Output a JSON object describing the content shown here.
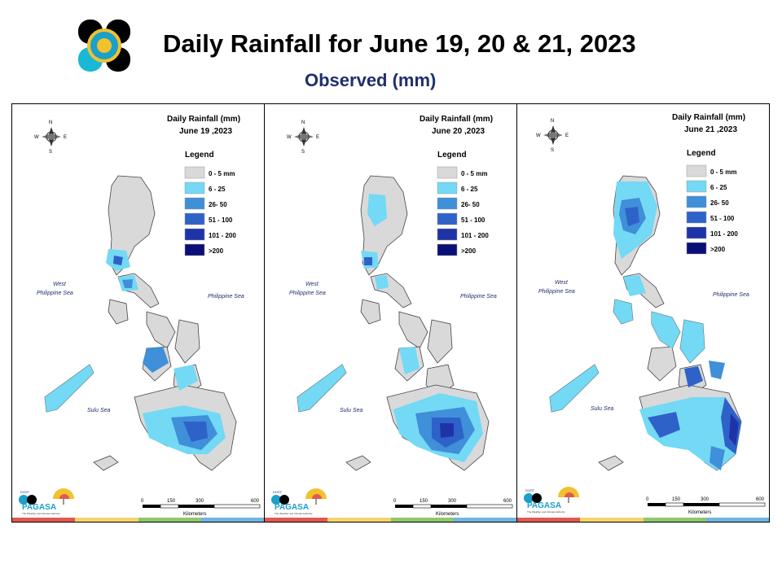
{
  "header": {
    "title": "Daily Rainfall for June 19, 20 & 21, 2023",
    "subtitle": "Observed (mm)"
  },
  "colors": {
    "c0": "#d9d9d9",
    "c1": "#73d9f5",
    "c2": "#3f8fd9",
    "c3": "#2f62c9",
    "c4": "#1f33a8",
    "c5": "#0a0f78",
    "strip": [
      "#e05a4f",
      "#f3d46b",
      "#8fc76e",
      "#6fb5e0"
    ]
  },
  "panels": [
    {
      "map_title_1": "Daily Rainfall (mm)",
      "map_title_2": "June 19 ,2023",
      "legend_title": "Legend",
      "legend": [
        "0 - 5 mm",
        "6 - 25",
        "26- 50",
        "51 - 100",
        "101 - 200",
        ">200"
      ],
      "labels": {
        "west_sea": "West",
        "west_sea_2": "Philippine Sea",
        "east_sea": "Philippine Sea",
        "sulu": "Sulu Sea"
      },
      "compass": {
        "n": "N",
        "s": "S",
        "e": "E",
        "w": "W"
      },
      "scale": {
        "ticks": [
          "0",
          "150",
          "300",
          "600"
        ],
        "unit": "Kilometers"
      },
      "agency": "PAGASA",
      "agency_top": "DOST",
      "agency_sub": "The Weather and Climate Authority"
    },
    {
      "map_title_1": "Daily Rainfall (mm)",
      "map_title_2": "June 20 ,2023",
      "legend_title": "Legend",
      "legend": [
        "0 - 5 mm",
        "6 - 25",
        "26- 50",
        "51 - 100",
        "101 - 200",
        ">200"
      ],
      "labels": {
        "west_sea": "West",
        "west_sea_2": "Philippine Sea",
        "east_sea": "Philippine Sea",
        "sulu": "Sulu Sea"
      },
      "compass": {
        "n": "N",
        "s": "S",
        "e": "E",
        "w": "W"
      },
      "scale": {
        "ticks": [
          "0",
          "150",
          "300",
          "600"
        ],
        "unit": "Kilometers"
      },
      "agency": "PAGASA",
      "agency_top": "DOST",
      "agency_sub": "The Weather and Climate Authority"
    },
    {
      "map_title_1": "Daily Rainfall (mm)",
      "map_title_2": "June 21 ,2023",
      "legend_title": "Legend",
      "legend": [
        "0 - 5 mm",
        "6 - 25",
        "26- 50",
        "51 - 100",
        "101 - 200",
        ">200"
      ],
      "labels": {
        "west_sea": "West",
        "west_sea_2": "Philippine Sea",
        "east_sea": "Philippine Sea",
        "sulu": "Sulu Sea"
      },
      "compass": {
        "n": "N",
        "s": "S",
        "e": "E",
        "w": "W"
      },
      "scale": {
        "ticks": [
          "0",
          "150",
          "300",
          "600"
        ],
        "unit": "Kilometers"
      },
      "agency": "PAGASA",
      "agency_top": "DOST",
      "agency_sub": "The Weather and Climate Authority"
    }
  ]
}
